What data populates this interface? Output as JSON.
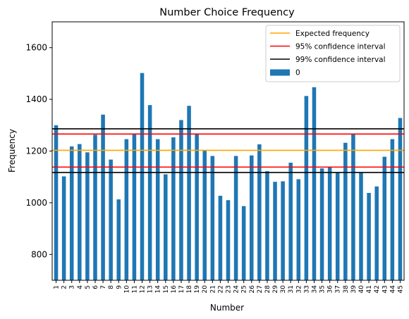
{
  "chart_data": {
    "type": "bar",
    "title": "Number Choice Frequency",
    "xlabel": "Number",
    "ylabel": "Frequency",
    "ylim": [
      700,
      1700
    ],
    "yticks": [
      800,
      1000,
      1200,
      1400,
      1600
    ],
    "categories": [
      "1",
      "2",
      "3",
      "4",
      "5",
      "6",
      "7",
      "8",
      "9",
      "10",
      "11",
      "12",
      "13",
      "14",
      "15",
      "16",
      "17",
      "18",
      "19",
      "20",
      "21",
      "22",
      "23",
      "24",
      "25",
      "26",
      "27",
      "28",
      "29",
      "30",
      "31",
      "32",
      "33",
      "34",
      "35",
      "36",
      "37",
      "38",
      "39",
      "40",
      "41",
      "42",
      "43",
      "44",
      "45"
    ],
    "series": [
      {
        "name": "0",
        "color": "#1f77b4",
        "values": [
          1300,
          1102,
          1218,
          1227,
          1195,
          1263,
          1341,
          1167,
          1013,
          1246,
          1268,
          1502,
          1378,
          1246,
          1110,
          1253,
          1320,
          1375,
          1268,
          1203,
          1181,
          1027,
          1010,
          1181,
          987,
          1183,
          1226,
          1122,
          1081,
          1083,
          1155,
          1091,
          1413,
          1447,
          1133,
          1138,
          1116,
          1232,
          1268,
          1116,
          1038,
          1063,
          1178,
          1246,
          1328
        ]
      }
    ],
    "reference_lines": [
      {
        "name": "Expected frequency",
        "color": "#ffa500",
        "values": [
          1203
        ]
      },
      {
        "name": "95% confidence interval",
        "color": "#ff0000",
        "values": [
          1138,
          1266
        ]
      },
      {
        "name": "99% confidence interval",
        "color": "#000000",
        "values": [
          1117,
          1286
        ]
      }
    ],
    "legend": {
      "placement": "upper right",
      "entries": [
        "Expected frequency",
        "95% confidence interval",
        "99% confidence interval",
        "0"
      ]
    }
  }
}
